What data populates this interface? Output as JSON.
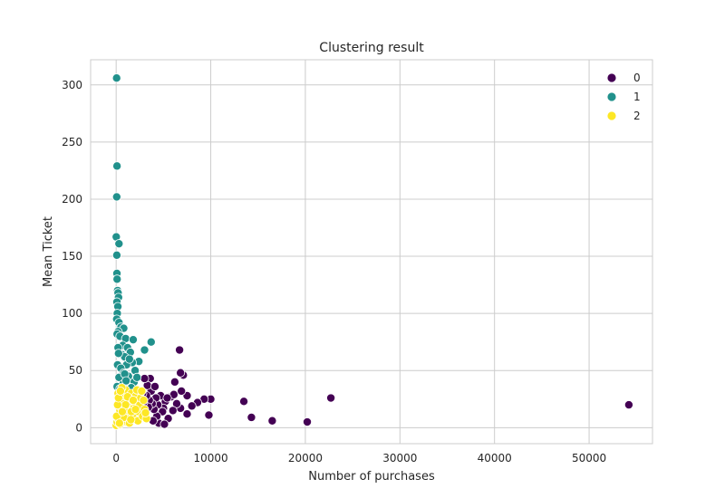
{
  "chart_data": {
    "type": "scatter",
    "title": "Clustering result",
    "xlabel": "Number of purchases",
    "ylabel": "Mean Ticket",
    "xlim": [
      -2700,
      56700
    ],
    "ylim": [
      -14,
      322
    ],
    "xticks": [
      0,
      10000,
      20000,
      30000,
      40000,
      50000
    ],
    "xtick_labels": [
      "0",
      "10000",
      "20000",
      "30000",
      "40000",
      "50000"
    ],
    "yticks": [
      0,
      50,
      100,
      150,
      200,
      250,
      300
    ],
    "ytick_labels": [
      "0",
      "50",
      "100",
      "150",
      "200",
      "250",
      "300"
    ],
    "grid": true,
    "legend_position": "top-right",
    "legend": [
      "0",
      "1",
      "2"
    ],
    "colors": {
      "0": "#440154",
      "1": "#21918c",
      "2": "#fde725"
    },
    "series": [
      {
        "name": "0",
        "color": "#440154",
        "points": [
          [
            54200,
            20
          ],
          [
            22700,
            26
          ],
          [
            20200,
            5
          ],
          [
            16500,
            6
          ],
          [
            14300,
            9
          ],
          [
            13500,
            23
          ],
          [
            10000,
            25
          ],
          [
            9800,
            11
          ],
          [
            9300,
            25
          ],
          [
            8600,
            22
          ],
          [
            8000,
            19
          ],
          [
            7500,
            28
          ],
          [
            7500,
            12
          ],
          [
            7100,
            46
          ],
          [
            6800,
            48
          ],
          [
            6700,
            68
          ],
          [
            6900,
            32
          ],
          [
            6800,
            17
          ],
          [
            6400,
            21
          ],
          [
            6200,
            40
          ],
          [
            6000,
            15
          ],
          [
            5800,
            27
          ],
          [
            5500,
            8
          ],
          [
            5200,
            23
          ],
          [
            5000,
            17
          ],
          [
            4900,
            14
          ],
          [
            4700,
            28
          ],
          [
            4500,
            4
          ],
          [
            4400,
            20
          ],
          [
            4300,
            10
          ],
          [
            4200,
            26
          ],
          [
            4000,
            16
          ],
          [
            3900,
            6
          ],
          [
            3800,
            21
          ],
          [
            3700,
            32
          ],
          [
            3600,
            43
          ],
          [
            3500,
            24
          ],
          [
            3400,
            18
          ],
          [
            3300,
            37
          ],
          [
            3200,
            28
          ],
          [
            3100,
            12
          ],
          [
            3000,
            43
          ],
          [
            2900,
            22
          ],
          [
            2800,
            30
          ],
          [
            5100,
            3
          ],
          [
            6100,
            29
          ],
          [
            5400,
            26
          ],
          [
            4100,
            36
          ]
        ]
      },
      {
        "name": "1",
        "color": "#21918c",
        "points": [
          [
            50,
            306
          ],
          [
            90,
            229
          ],
          [
            60,
            202
          ],
          [
            10,
            167
          ],
          [
            300,
            161
          ],
          [
            70,
            151
          ],
          [
            80,
            135
          ],
          [
            100,
            130
          ],
          [
            150,
            120
          ],
          [
            200,
            118
          ],
          [
            250,
            114
          ],
          [
            80,
            110
          ],
          [
            180,
            106
          ],
          [
            120,
            100
          ],
          [
            60,
            95
          ],
          [
            300,
            92
          ],
          [
            500,
            88
          ],
          [
            800,
            87
          ],
          [
            200,
            84
          ],
          [
            100,
            82
          ],
          [
            400,
            80
          ],
          [
            1000,
            78
          ],
          [
            1800,
            77
          ],
          [
            3700,
            75
          ],
          [
            700,
            72
          ],
          [
            1200,
            70
          ],
          [
            200,
            70
          ],
          [
            3000,
            68
          ],
          [
            1500,
            66
          ],
          [
            600,
            64
          ],
          [
            900,
            62
          ],
          [
            2400,
            58
          ],
          [
            1700,
            57
          ],
          [
            1100,
            55
          ],
          [
            150,
            55
          ],
          [
            500,
            52
          ],
          [
            2000,
            50
          ],
          [
            800,
            48
          ],
          [
            1300,
            45
          ],
          [
            300,
            44
          ],
          [
            1900,
            40
          ],
          [
            700,
            38
          ],
          [
            100,
            36
          ],
          [
            1600,
            35
          ],
          [
            400,
            34
          ],
          [
            900,
            47
          ],
          [
            1400,
            60
          ],
          [
            2200,
            44
          ],
          [
            250,
            65
          ],
          [
            1050,
            41
          ]
        ]
      },
      {
        "name": "2",
        "color": "#fde725",
        "points": [
          [
            0,
            2
          ],
          [
            100,
            5
          ],
          [
            200,
            8
          ],
          [
            300,
            12
          ],
          [
            400,
            15
          ],
          [
            500,
            18
          ],
          [
            600,
            22
          ],
          [
            700,
            25
          ],
          [
            800,
            28
          ],
          [
            900,
            30
          ],
          [
            1000,
            33
          ],
          [
            1100,
            5
          ],
          [
            1200,
            10
          ],
          [
            1300,
            15
          ],
          [
            1400,
            20
          ],
          [
            1500,
            25
          ],
          [
            1600,
            30
          ],
          [
            1700,
            8
          ],
          [
            1800,
            12
          ],
          [
            1900,
            18
          ],
          [
            2000,
            22
          ],
          [
            2100,
            28
          ],
          [
            2200,
            33
          ],
          [
            2300,
            6
          ],
          [
            2400,
            14
          ],
          [
            2500,
            20
          ],
          [
            2600,
            26
          ],
          [
            2700,
            32
          ],
          [
            2800,
            10
          ],
          [
            3000,
            16
          ],
          [
            3200,
            8
          ],
          [
            200,
            30
          ],
          [
            400,
            3
          ],
          [
            600,
            35
          ],
          [
            800,
            9
          ],
          [
            1000,
            20
          ],
          [
            1200,
            27
          ],
          [
            1400,
            4
          ],
          [
            1600,
            14
          ],
          [
            1800,
            24
          ],
          [
            50,
            10
          ],
          [
            150,
            20
          ],
          [
            250,
            26
          ],
          [
            350,
            4
          ],
          [
            450,
            32
          ],
          [
            2900,
            24
          ],
          [
            3100,
            13
          ],
          [
            650,
            14
          ],
          [
            1550,
            7
          ],
          [
            2050,
            16
          ]
        ]
      }
    ]
  }
}
